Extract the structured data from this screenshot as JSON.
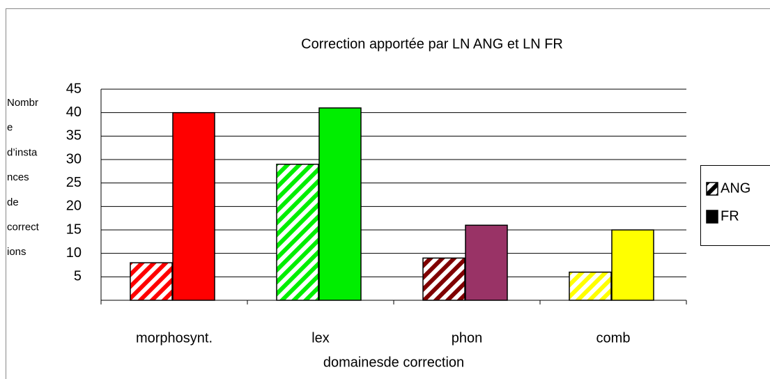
{
  "chart_data": {
    "type": "bar",
    "title": "Correction apportée par LN ANG et LN FR",
    "x_label": "domainesde correction",
    "y_label_lines": [
      "Nombr",
      "e",
      "d’insta",
      "nces",
      "de",
      "correct",
      "ions"
    ],
    "categories": [
      "morphosynt.",
      "lex",
      "phon",
      "comb"
    ],
    "series": [
      {
        "name": "ANG",
        "color": "#000000",
        "hatched": true,
        "colors": [
          "#ff0000",
          "#00ee00",
          "#800000",
          "#ffff00"
        ],
        "values": [
          8,
          29,
          9,
          6
        ]
      },
      {
        "name": "FR",
        "color": "#000000",
        "hatched": false,
        "colors": [
          "#ff0000",
          "#00ee00",
          "#993366",
          "#ffff00"
        ],
        "values": [
          40,
          41,
          16,
          15
        ]
      }
    ],
    "ylim": [
      0,
      45
    ],
    "yticks": [
      5,
      10,
      15,
      20,
      25,
      30,
      35,
      40,
      45
    ],
    "grid": true,
    "legend": "right"
  }
}
